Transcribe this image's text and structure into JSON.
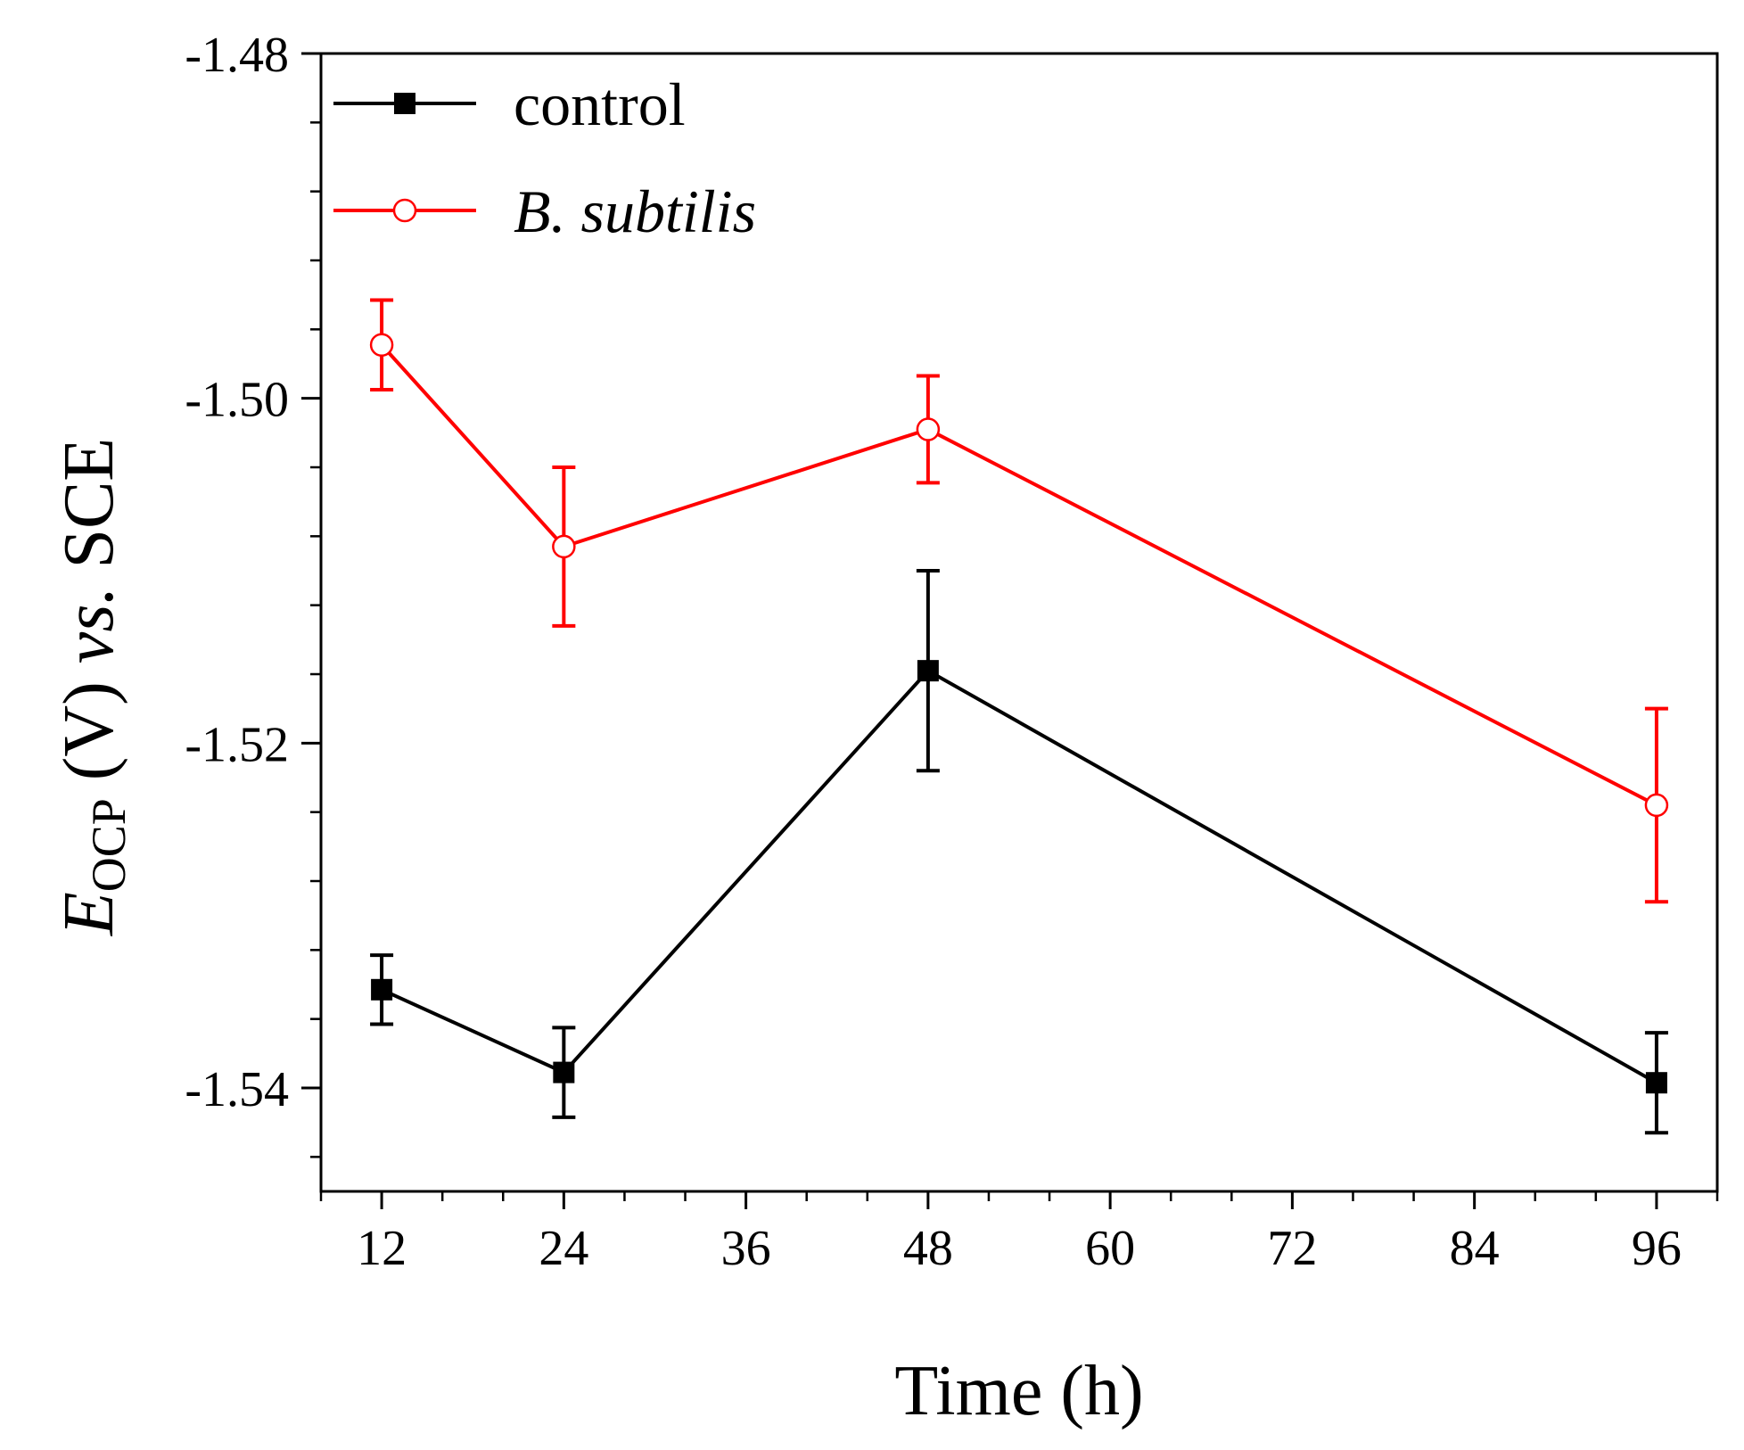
{
  "chart_data": {
    "type": "line",
    "title": "",
    "xlabel": "Time (h)",
    "ylabel": {
      "main": "E",
      "subscript": "OCP",
      "unit": " (V) ",
      "vs": "vs.",
      "ref": " SCE"
    },
    "xlim": [
      8,
      100
    ],
    "ylim": [
      -1.546,
      -1.48
    ],
    "xticks": [
      12,
      24,
      36,
      48,
      60,
      72,
      84,
      96
    ],
    "xtick_labels": [
      "12",
      "24",
      "36",
      "48",
      "60",
      "72",
      "84",
      "96"
    ],
    "yticks": [
      -1.48,
      -1.5,
      -1.52,
      -1.54
    ],
    "ytick_labels": [
      "-1.48",
      "-1.50",
      "-1.52",
      "-1.54"
    ],
    "grid": false,
    "legend_position": "top-left",
    "series": [
      {
        "name": "control",
        "color": "#000000",
        "marker": "filled-square",
        "x": [
          12,
          24,
          48,
          96
        ],
        "y": [
          -1.5343,
          -1.5391,
          -1.5158,
          -1.5397
        ],
        "error": [
          0.002,
          0.0026,
          0.0058,
          0.0029
        ]
      },
      {
        "name": "B. subtilis",
        "name_italic": true,
        "color": "#ff0000",
        "marker": "open-circle",
        "x": [
          12,
          24,
          48,
          96
        ],
        "y": [
          -1.4969,
          -1.5086,
          -1.5018,
          -1.5236
        ],
        "error": [
          0.0026,
          0.0046,
          0.0031,
          0.0056
        ]
      }
    ]
  }
}
